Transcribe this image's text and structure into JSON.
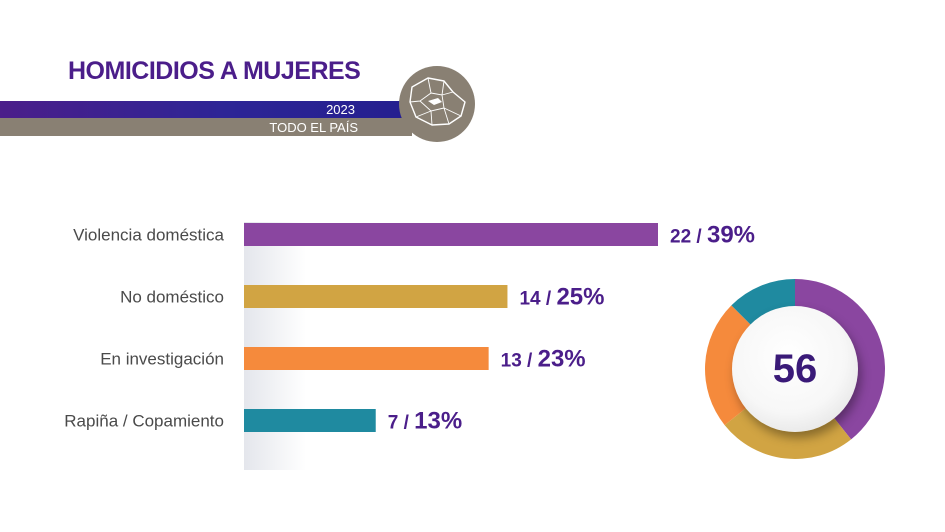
{
  "header": {
    "title": "HOMICIDIOS A MUJERES",
    "year": "2023",
    "scope": "TODO EL PAÍS",
    "badge_icon": "uruguay-map-icon"
  },
  "colors": {
    "title": "#4b1e8a",
    "band_top": "#2d2596",
    "band_bottom": "#898073",
    "values": "#4b1e8a"
  },
  "chart_data": [
    {
      "type": "bar",
      "orientation": "horizontal",
      "categories": [
        "Violencia doméstica",
        "No doméstico",
        "En investigación",
        "Rapiña / Copamiento"
      ],
      "values": [
        22,
        14,
        13,
        7
      ],
      "percent_labels": [
        "39%",
        "25%",
        "23%",
        "13%"
      ],
      "colors": [
        "#8a46a0",
        "#d1a443",
        "#f58a3c",
        "#1f8aa0"
      ],
      "xlim": [
        0,
        22
      ],
      "grid": false
    },
    {
      "type": "pie",
      "donut": true,
      "labels": [
        "Violencia doméstica",
        "No doméstico",
        "En investigación",
        "Rapiña / Copamiento"
      ],
      "values": [
        22,
        14,
        13,
        7
      ],
      "colors": [
        "#8a46a0",
        "#d1a443",
        "#f58a3c",
        "#1f8aa0"
      ],
      "center_label": "56"
    }
  ]
}
